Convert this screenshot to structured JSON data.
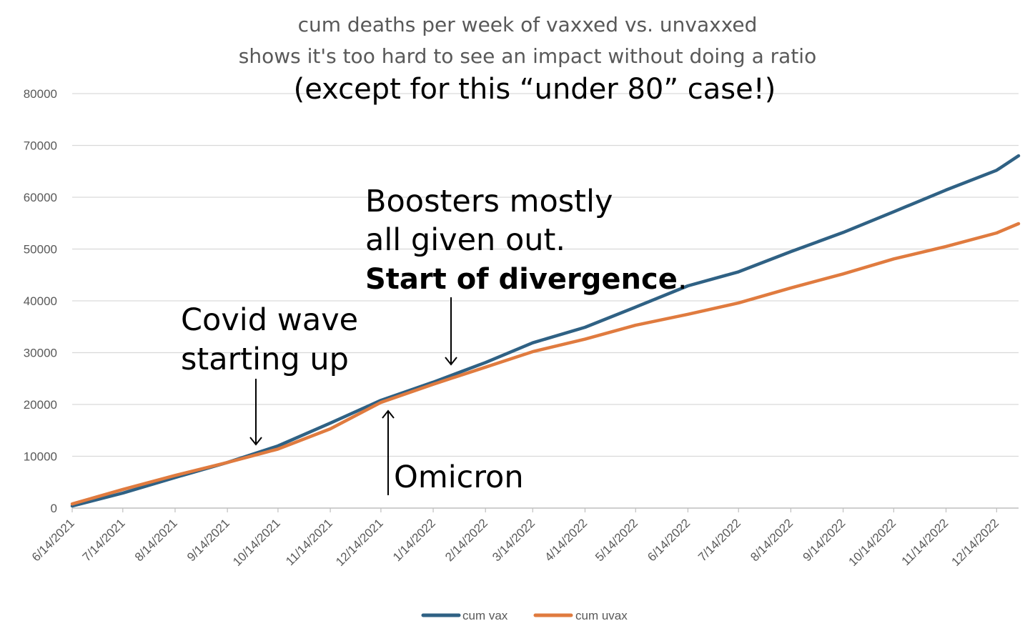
{
  "chart_data": {
    "type": "line",
    "title_lines": [
      "cum deaths per week of vaxxed vs. unvaxxed",
      "shows it's too hard to see an impact without doing a ratio"
    ],
    "subtitle": "(except for this “under 80” case!)",
    "xlabel": "",
    "ylabel": "",
    "ylim": [
      0,
      80000
    ],
    "yticks": [
      "0",
      "10000",
      "20000",
      "30000",
      "40000",
      "50000",
      "60000",
      "70000",
      "80000"
    ],
    "xticks": [
      "6/14/2021",
      "7/14/2021",
      "8/14/2021",
      "9/14/2021",
      "10/14/2021",
      "11/14/2021",
      "12/14/2021",
      "1/14/2022",
      "2/14/2022",
      "3/14/2022",
      "4/14/2022",
      "5/14/2022",
      "6/14/2022",
      "7/14/2022",
      "8/14/2022",
      "9/14/2022",
      "10/14/2022",
      "11/14/2022",
      "12/14/2022"
    ],
    "grid": true,
    "legend_position": "bottom",
    "x": [
      "6/14/2021",
      "7/14/2021",
      "8/14/2021",
      "9/14/2021",
      "10/14/2021",
      "11/14/2021",
      "12/14/2021",
      "1/14/2022",
      "2/14/2022",
      "3/14/2022",
      "4/14/2022",
      "5/14/2022",
      "6/14/2022",
      "7/14/2022",
      "8/14/2022",
      "9/14/2022",
      "10/14/2022",
      "11/14/2022",
      "12/14/2022",
      "12/27/2022"
    ],
    "series": [
      {
        "name": "cum vax",
        "color": "#2f6184",
        "values": [
          400,
          2900,
          5900,
          8800,
          12000,
          16400,
          20800,
          24300,
          28100,
          31900,
          34900,
          38800,
          42900,
          45600,
          49500,
          53200,
          57200,
          61400,
          65200,
          68000
        ]
      },
      {
        "name": "cum uvax",
        "color": "#e07b3f",
        "values": [
          800,
          3600,
          6300,
          8800,
          11400,
          15300,
          20400,
          23900,
          27200,
          30200,
          32600,
          35300,
          37400,
          39600,
          42500,
          45200,
          48100,
          50500,
          53100,
          54900
        ]
      }
    ],
    "annotations": {
      "covid_wave": [
        "Covid wave",
        "starting up"
      ],
      "boosters": [
        "Boosters mostly",
        "all given out."
      ],
      "divergence": "Start of divergence",
      "divergence_period": ".",
      "omicron": "Omicron"
    }
  }
}
